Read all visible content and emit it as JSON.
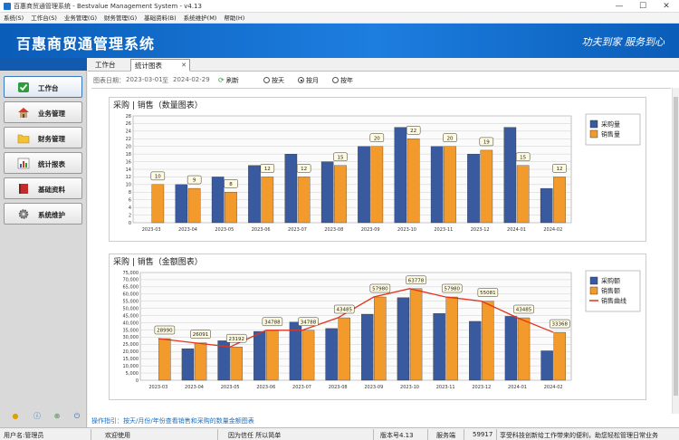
{
  "window": {
    "title": "百惠商贸通管理系统 - Bestvalue Management System - v4.13",
    "controls": [
      "—",
      "☐",
      "✕"
    ]
  },
  "menu": [
    "系统(S)",
    "工作台(S)",
    "业务管理(G)",
    "财务管理(G)",
    "基础资料(B)",
    "系统维护(M)",
    "帮助(H)"
  ],
  "banner": {
    "logo": "百惠商贸通管理系统",
    "slogan": "功夫到家 服务到心"
  },
  "sidebar": {
    "items": [
      {
        "label": "工作台",
        "icon": "check-icon",
        "active": true
      },
      {
        "label": "业务管理",
        "icon": "house-icon",
        "active": false
      },
      {
        "label": "财务管理",
        "icon": "folder-icon",
        "active": false
      },
      {
        "label": "统计报表",
        "icon": "report-icon",
        "active": false
      },
      {
        "label": "基础资料",
        "icon": "book-icon",
        "active": false
      },
      {
        "label": "系统维护",
        "icon": "gear-icon",
        "active": false
      }
    ]
  },
  "tabs": {
    "workbench": "工作台",
    "stats": "统计图表",
    "close": "✕"
  },
  "filter": {
    "date_label": "图表日期：",
    "start": "2023-03-01",
    "to": "至",
    "end": "2024-02-29",
    "refresh": "刷新",
    "options": [
      "按天",
      "按月",
      "按年"
    ],
    "selected": "按月"
  },
  "colors": {
    "purchase": "#3a5aa0",
    "sales": "#f39a2c",
    "curve": "#e3341d",
    "banner": "#0a5db8"
  },
  "chart_data": [
    {
      "type": "bar",
      "title": "采购 | 销售（数量图表）",
      "categories": [
        "2023-03",
        "2023-04",
        "2023-05",
        "2023-06",
        "2023-07",
        "2023-08",
        "2023-09",
        "2023-10",
        "2023-11",
        "2023-12",
        "2024-01",
        "2024-02"
      ],
      "series": [
        {
          "name": "采购量",
          "values": [
            0,
            10,
            12,
            15,
            18,
            16,
            20,
            25,
            20,
            18,
            25,
            9
          ]
        },
        {
          "name": "销售量",
          "values": [
            10,
            9,
            8,
            12,
            12,
            15,
            20,
            22,
            20,
            19,
            15,
            12
          ]
        }
      ],
      "data_labels": [
        "10",
        "9",
        "8",
        "12",
        "12",
        "15",
        "20",
        "22",
        "20",
        "19",
        "15",
        "12"
      ],
      "ylim": [
        0,
        28
      ],
      "yticks": [
        "0",
        "2",
        "4",
        "6",
        "8",
        "10",
        "12",
        "14",
        "16",
        "18",
        "20",
        "22",
        "24",
        "26",
        "28"
      ],
      "grid": true,
      "legend": "top-right"
    },
    {
      "type": "bar",
      "title": "采购 | 销售（金额图表）",
      "categories": [
        "2023-03",
        "2023-04",
        "2023-05",
        "2023-06",
        "2023-07",
        "2023-08",
        "2023-09",
        "2023-10",
        "2023-11",
        "2023-12",
        "2024-01",
        "2024-02"
      ],
      "series": [
        {
          "name": "采购额",
          "values": [
            0,
            22000,
            27500,
            34000,
            40500,
            36000,
            46000,
            57500,
            46500,
            41000,
            44500,
            20500
          ]
        },
        {
          "name": "销售额",
          "values": [
            28990,
            26091,
            23192,
            34788,
            34788,
            43485,
            57980,
            63778,
            57980,
            55081,
            43485,
            33368
          ]
        },
        {
          "name": "销售曲线",
          "type": "line",
          "values": [
            28990,
            26091,
            23192,
            34788,
            34788,
            43485,
            57980,
            63778,
            57980,
            55081,
            43485,
            33368
          ]
        }
      ],
      "data_labels": [
        "28990",
        "26091",
        "23192",
        "34788",
        "34788",
        "43485",
        "57980",
        "63778",
        "57980",
        "55081",
        "43485",
        "33368"
      ],
      "ylim": [
        0,
        75000
      ],
      "yticks": [
        "0",
        "5,000",
        "10,000",
        "15,000",
        "20,000",
        "25,000",
        "30,000",
        "35,000",
        "40,000",
        "45,000",
        "50,000",
        "55,000",
        "60,000",
        "65,000",
        "70,000",
        "75,000"
      ],
      "grid": true,
      "legend": "top-right"
    }
  ],
  "hint": "操作指引：按天/月份/年份查看销售和采购的数量金额图表",
  "status": {
    "user": "用户名:管理员",
    "welcome": "欢迎使用",
    "motto": "因为信任 所以简单",
    "version": "版本号4.13",
    "service_label": "服务端",
    "service_port": "59917",
    "marquee": "享受科技创新给工作带来的便利，助您轻松管理日常业务"
  }
}
